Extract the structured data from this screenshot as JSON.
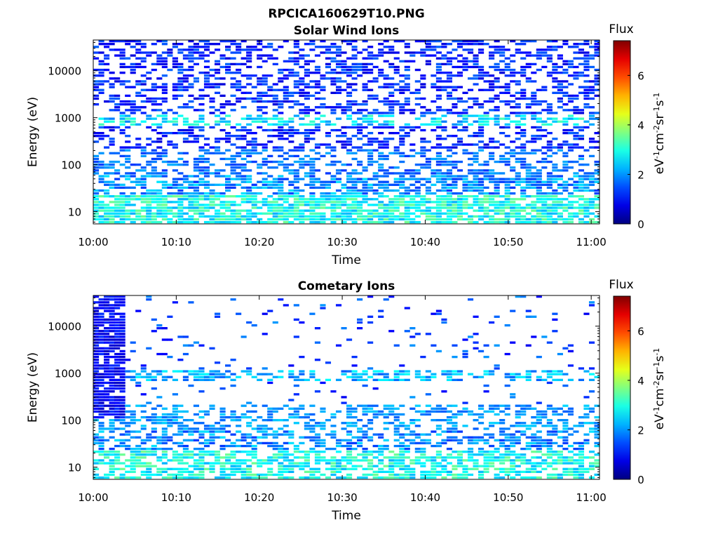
{
  "figure_title": "RPCICA160629T10.PNG",
  "chart_data": [
    {
      "type": "heatmap",
      "title": "Solar Wind Ions",
      "xlabel": "Time",
      "ylabel": "Energy (eV)",
      "x_ticks": [
        "10:00",
        "10:10",
        "10:20",
        "10:30",
        "10:40",
        "10:50",
        "11:00"
      ],
      "x_range_minutes": [
        0,
        61
      ],
      "y_ticks": [
        "10",
        "100",
        "1000",
        "10000"
      ],
      "y_scale": "log",
      "y_range": [
        5.5,
        45000
      ],
      "colorbar": {
        "title": "Flux",
        "label": "eV-1cm-2sr-1s-1",
        "ticks": [
          "0",
          "2",
          "4",
          "6"
        ],
        "range": [
          0,
          7.4
        ],
        "colormap": "jet"
      },
      "pattern": {
        "seed": 17,
        "high_density": 0.44,
        "low_energy_fill": 0.78,
        "band_1000_level": 3.0,
        "base_level": 1.3
      }
    },
    {
      "type": "heatmap",
      "title": "Cometary Ions",
      "xlabel": "Time",
      "ylabel": "Energy (eV)",
      "x_ticks": [
        "10:00",
        "10:10",
        "10:20",
        "10:30",
        "10:40",
        "10:50",
        "11:00"
      ],
      "x_range_minutes": [
        0,
        61
      ],
      "y_ticks": [
        "10",
        "100",
        "1000",
        "10000"
      ],
      "y_scale": "log",
      "y_range": [
        5.5,
        45000
      ],
      "colorbar": {
        "title": "Flux",
        "label": "eV-1cm-2sr-1s-1",
        "ticks": [
          "0",
          "2",
          "4",
          "6"
        ],
        "range": [
          0,
          7.4
        ],
        "colormap": "jet"
      },
      "pattern": {
        "seed": 91,
        "high_density": 0.06,
        "low_energy_fill": 0.62,
        "band_1000_level": 2.6,
        "base_level": 1.6,
        "dense_start_minutes": 3.5
      }
    }
  ]
}
